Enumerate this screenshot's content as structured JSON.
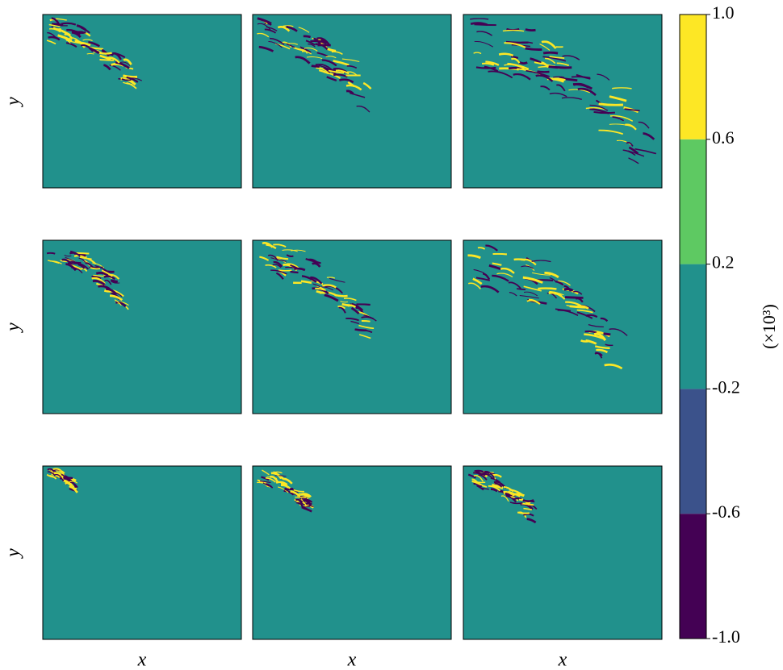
{
  "chart_data": {
    "type": "field-grid",
    "rows": 3,
    "cols": 3,
    "xlabel": "x",
    "ylabel": "y",
    "background": "#21918c",
    "colorbar": {
      "label": "(×10³)",
      "ylim": [
        -1,
        1
      ],
      "ticks": [
        {
          "value": -1,
          "label": "-1.0"
        },
        -0.6,
        -0.2,
        0.2,
        0.6,
        {
          "value": 1,
          "label": "1.0"
        }
      ],
      "colors": [
        "#440154",
        "#3b528b",
        "#21918c",
        "#5ec962",
        "#fde725"
      ]
    }
  }
}
